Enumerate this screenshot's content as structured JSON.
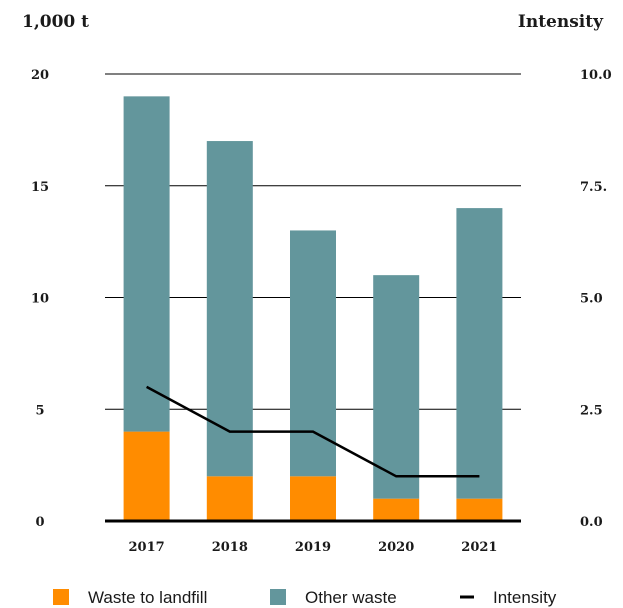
{
  "chart_data": {
    "type": "bar",
    "stacked": true,
    "categories": [
      "2017",
      "2018",
      "2019",
      "2020",
      "2021"
    ],
    "series": [
      {
        "name": "Waste to landfill",
        "values": [
          4,
          2,
          2,
          1,
          1
        ],
        "color": "#ff8c00"
      },
      {
        "name": "Other waste",
        "values": [
          15,
          15,
          11,
          10,
          13
        ],
        "color": "#63969c"
      }
    ],
    "line_series": {
      "name": "Intensity",
      "values": [
        3.0,
        2.0,
        2.0,
        1.0,
        1.0
      ],
      "color": "#000000",
      "axis": "right"
    },
    "ylabel": "1,000 t",
    "y2label": "Intensity",
    "ylim": [
      0,
      20
    ],
    "y2lim": [
      0,
      10
    ],
    "yticks": [
      "0",
      "5",
      "10",
      "15",
      "20"
    ],
    "y2ticks": [
      "0.0",
      "2.5",
      "5.0",
      "7.5.",
      "10.0"
    ],
    "grid": true,
    "legend_position": "bottom"
  }
}
